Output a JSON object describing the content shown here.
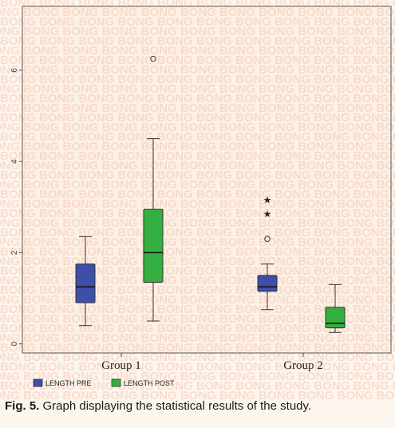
{
  "watermark": "BONG",
  "caption": {
    "prefix": "Fig. 5.",
    "text": " Graph displaying the statistical results of the study."
  },
  "colors": {
    "pre": "#3d4fa8",
    "post": "#35b040",
    "plot_bg": "#fcf1e7",
    "page_bg": "#fdf6ef"
  },
  "chart_data": {
    "type": "box",
    "categories": [
      "Group 1",
      "Group 2"
    ],
    "ylim": [
      -0.2,
      7.4
    ],
    "yticks": [
      0,
      2,
      4,
      6
    ],
    "legend_position": "bottom-left",
    "series": [
      {
        "name": "LENGTH PRE",
        "color": "#3d4fa8",
        "boxes": [
          {
            "min": 0.4,
            "q1": 0.9,
            "median": 1.25,
            "q3": 1.75,
            "max": 2.35,
            "outliers": [],
            "extremes": []
          },
          {
            "min": 0.75,
            "q1": 1.15,
            "median": 1.25,
            "q3": 1.5,
            "max": 1.75,
            "outliers": [
              2.3
            ],
            "extremes": [
              2.85,
              3.15
            ]
          }
        ]
      },
      {
        "name": "LENGTH POST",
        "color": "#35b040",
        "boxes": [
          {
            "min": 0.5,
            "q1": 1.35,
            "median": 2.0,
            "q3": 2.95,
            "max": 4.5,
            "outliers": [
              6.25
            ],
            "extremes": []
          },
          {
            "min": 0.25,
            "q1": 0.35,
            "median": 0.45,
            "q3": 0.8,
            "max": 1.3,
            "outliers": [],
            "extremes": []
          }
        ]
      }
    ]
  }
}
